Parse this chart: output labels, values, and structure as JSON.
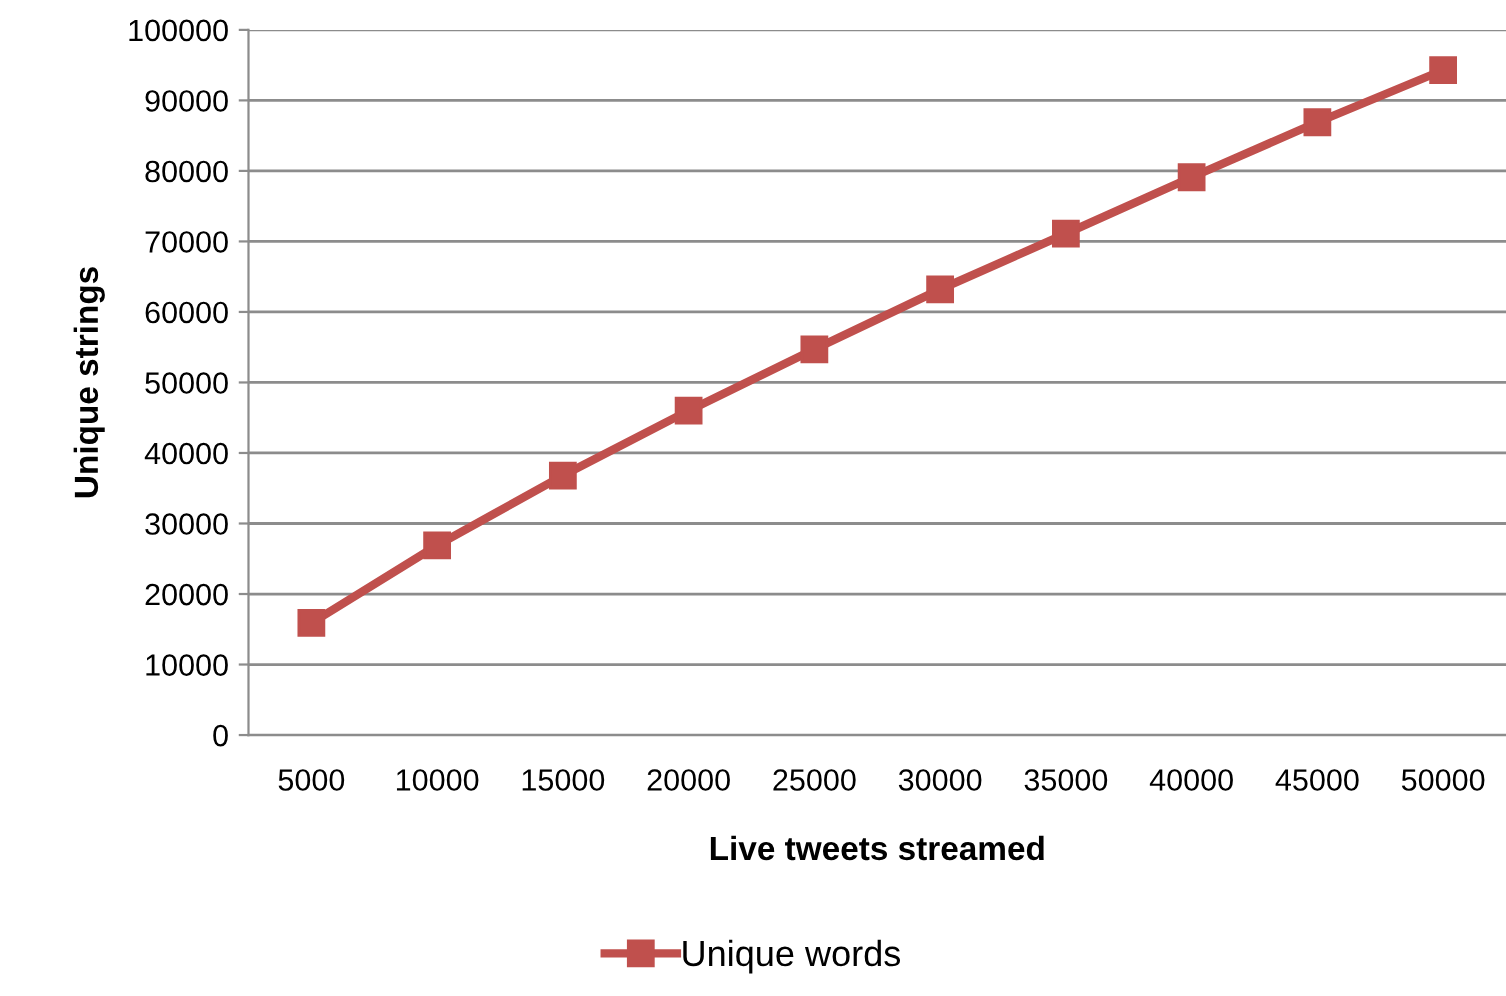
{
  "chart_data": {
    "type": "line",
    "xlabel": "Live tweets streamed",
    "ylabel": "Unique strings",
    "categories": [
      "5000",
      "10000",
      "15000",
      "20000",
      "25000",
      "30000",
      "35000",
      "40000",
      "45000",
      "50000"
    ],
    "series": [
      {
        "name": "Unique words",
        "color": "#c0504d",
        "values": [
          15900,
          26900,
          36800,
          46000,
          54700,
          63200,
          71100,
          79100,
          86900,
          94300
        ]
      }
    ],
    "ylim": [
      0,
      100000
    ],
    "yticks": [
      0,
      10000,
      20000,
      30000,
      40000,
      50000,
      60000,
      70000,
      80000,
      90000,
      100000
    ],
    "grid": "y",
    "legend": "bottom",
    "marker": "square",
    "line_style": "solid"
  }
}
